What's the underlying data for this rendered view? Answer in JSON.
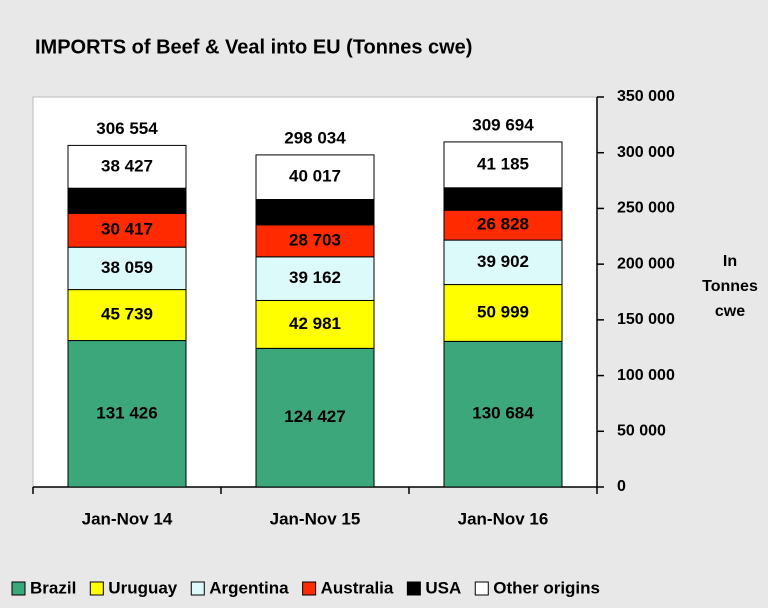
{
  "chart_data": {
    "type": "stacked_bar",
    "title": "IMPORTS of Beef & Veal into EU (Tonnes cwe)",
    "ylabel": [
      "In",
      "Tonnes",
      "cwe"
    ],
    "categories": [
      "Jan-Nov 14",
      "Jan-Nov 15",
      "Jan-Nov 16"
    ],
    "series": [
      {
        "name": "Brazil",
        "color": "#3ca77a",
        "values": [
          131426,
          124427,
          130684
        ],
        "value_labels": [
          "131 426",
          "124 427",
          "130 684"
        ]
      },
      {
        "name": "Uruguay",
        "color": "#ffff00",
        "values": [
          45739,
          42981,
          50999
        ],
        "value_labels": [
          "45 739",
          "42 981",
          "50 999"
        ]
      },
      {
        "name": "Argentina",
        "color": "#ddfafa",
        "values": [
          38059,
          39162,
          39902
        ],
        "value_labels": [
          "38 059",
          "39 162",
          "39 902"
        ]
      },
      {
        "name": "Australia",
        "color": "#ff2a00",
        "values": [
          30417,
          28703,
          26828
        ],
        "value_labels": [
          "30 417",
          "28 703",
          "26 828"
        ]
      },
      {
        "name": "USA",
        "color": "#000000",
        "values": [
          22486,
          22744,
          20096
        ]
      },
      {
        "name": "Other origins",
        "color": "#ffffff",
        "values": [
          38427,
          40017,
          41185
        ],
        "value_labels": [
          "38 427",
          "40 017",
          "41 185"
        ]
      }
    ],
    "totals": [
      306554,
      298034,
      309694
    ],
    "total_labels": [
      "306 554",
      "298 034",
      "309 694"
    ],
    "ylim": [
      0,
      350000
    ],
    "yticks": [
      0,
      {
        "value": 50000,
        "label": "50 000"
      },
      {
        "value": 100000,
        "label": "100 000"
      },
      {
        "value": 150000,
        "label": "150 000"
      },
      {
        "value": 200000,
        "label": "200 000"
      },
      {
        "value": 250000,
        "label": "250 000"
      },
      {
        "value": 300000,
        "label": "300 000"
      },
      {
        "value": 350000,
        "label": "350 000"
      }
    ],
    "grid": false
  }
}
